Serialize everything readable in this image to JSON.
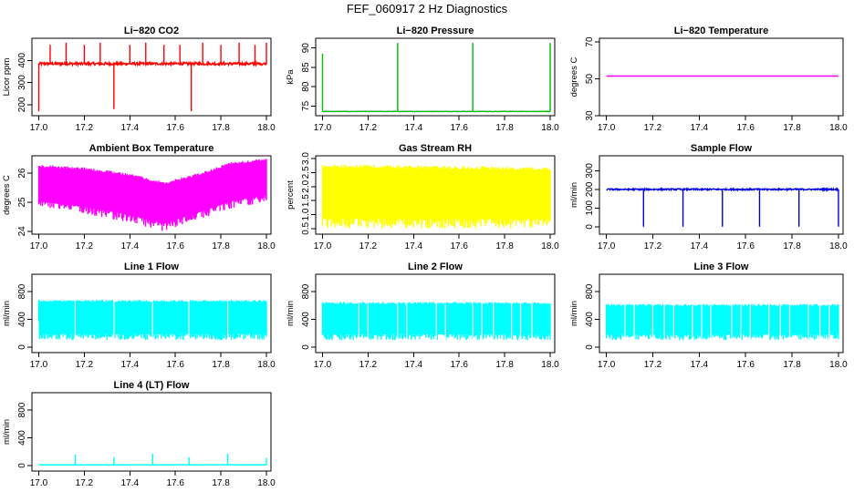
{
  "page": {
    "title": "FEF_060917  2 Hz Diagnostics"
  },
  "chart_data": [
    {
      "type": "line",
      "title": "Li−820 CO2",
      "xlabel": "",
      "ylabel": "Licor ppm",
      "xlim": [
        16.97,
        18.02
      ],
      "ylim": [
        150,
        500
      ],
      "xticks": [
        17.0,
        17.2,
        17.4,
        17.6,
        17.8,
        18.0
      ],
      "yticks": [
        200,
        300,
        400
      ],
      "color": "#ff0000",
      "base": 385,
      "noise": 6,
      "spikes": [
        [
          17.0,
          170
        ],
        [
          17.05,
          470
        ],
        [
          17.12,
          480
        ],
        [
          17.2,
          470
        ],
        [
          17.27,
          480
        ],
        [
          17.33,
          180
        ],
        [
          17.4,
          470
        ],
        [
          17.47,
          480
        ],
        [
          17.55,
          470
        ],
        [
          17.62,
          470
        ],
        [
          17.67,
          170
        ],
        [
          17.72,
          480
        ],
        [
          17.8,
          470
        ],
        [
          17.88,
          480
        ],
        [
          17.95,
          470
        ],
        [
          18.0,
          480
        ]
      ]
    },
    {
      "type": "line",
      "title": "Li−820 Pressure",
      "xlabel": "",
      "ylabel": "kPa",
      "xlim": [
        16.97,
        18.02
      ],
      "ylim": [
        72.5,
        92.5
      ],
      "xticks": [
        17.0,
        17.2,
        17.4,
        17.6,
        17.8,
        18.0
      ],
      "yticks": [
        75,
        80,
        85,
        90
      ],
      "color": "#00bb00",
      "base": 73.6,
      "noise": 0.05,
      "spikes": [
        [
          17.0,
          88.5
        ],
        [
          17.33,
          91.3
        ],
        [
          17.66,
          91.3
        ],
        [
          18.0,
          91.3
        ]
      ]
    },
    {
      "type": "line",
      "title": "Li−820 Temperature",
      "xlabel": "",
      "ylabel": "degrees C",
      "xlim": [
        16.97,
        18.02
      ],
      "ylim": [
        30,
        72
      ],
      "xticks": [
        17.0,
        17.2,
        17.4,
        17.6,
        17.8,
        18.0
      ],
      "yticks": [
        30,
        50,
        70
      ],
      "color": "#ff00ff",
      "base": 51.5,
      "noise": 0,
      "spikes": []
    },
    {
      "type": "area",
      "title": "Ambient Box Temperature",
      "xlabel": "",
      "ylabel": "degrees C",
      "xlim": [
        16.97,
        18.02
      ],
      "ylim": [
        23.9,
        26.6
      ],
      "xticks": [
        17.0,
        17.2,
        17.4,
        17.6,
        17.8,
        18.0
      ],
      "yticks": [
        24.0,
        25.0,
        26.0
      ],
      "color": "#ff00ff",
      "upper": [
        [
          17.0,
          26.3
        ],
        [
          17.2,
          26.2
        ],
        [
          17.4,
          26.0
        ],
        [
          17.55,
          25.7
        ],
        [
          17.7,
          26.0
        ],
        [
          17.85,
          26.4
        ],
        [
          18.0,
          26.5
        ]
      ],
      "lower": [
        [
          17.0,
          24.8
        ],
        [
          17.2,
          24.6
        ],
        [
          17.4,
          24.3
        ],
        [
          17.55,
          24.0
        ],
        [
          17.7,
          24.4
        ],
        [
          17.85,
          24.8
        ],
        [
          18.0,
          25.0
        ]
      ]
    },
    {
      "type": "area",
      "title": "Gas Stream RH",
      "xlabel": "",
      "ylabel": "percent",
      "xlim": [
        16.97,
        18.02
      ],
      "ylim": [
        0.3,
        3.1
      ],
      "xticks": [
        17.0,
        17.2,
        17.4,
        17.6,
        17.8,
        18.0
      ],
      "yticks": [
        0.5,
        1.0,
        1.5,
        2.0,
        2.5,
        3.0
      ],
      "color": "#ffff00",
      "upper": [
        [
          17.0,
          2.8
        ],
        [
          18.0,
          2.7
        ]
      ],
      "lower": [
        [
          17.0,
          0.5
        ],
        [
          18.0,
          0.5
        ]
      ]
    },
    {
      "type": "line",
      "title": "Sample Flow",
      "xlabel": "",
      "ylabel": "ml/min",
      "xlim": [
        16.97,
        18.02
      ],
      "ylim": [
        -40,
        380
      ],
      "xticks": [
        17.0,
        17.2,
        17.4,
        17.6,
        17.8,
        18.0
      ],
      "yticks": [
        0,
        100,
        200,
        300
      ],
      "color": "#0000dd",
      "base": 200,
      "noise": 4,
      "spikes": [
        [
          17.16,
          0
        ],
        [
          17.33,
          0
        ],
        [
          17.5,
          0
        ],
        [
          17.66,
          0
        ],
        [
          17.83,
          0
        ],
        [
          18.0,
          0
        ]
      ]
    },
    {
      "type": "area",
      "title": "Line 1 Flow",
      "xlabel": "",
      "ylabel": "ml/min",
      "xlim": [
        16.97,
        18.02
      ],
      "ylim": [
        -80,
        1050
      ],
      "xticks": [
        17.0,
        17.2,
        17.4,
        17.6,
        17.8,
        18.0
      ],
      "yticks": [
        0,
        400,
        800
      ],
      "color": "#00ffff",
      "upper": [
        [
          17.0,
          680
        ],
        [
          18.0,
          680
        ]
      ],
      "lower": [
        [
          17.0,
          100
        ],
        [
          18.0,
          100
        ]
      ],
      "gaps": [
        17.16,
        17.33,
        17.5,
        17.66,
        17.83
      ]
    },
    {
      "type": "area",
      "title": "Line 2 Flow",
      "xlabel": "",
      "ylabel": "ml/min",
      "xlim": [
        16.97,
        18.02
      ],
      "ylim": [
        -80,
        1050
      ],
      "xticks": [
        17.0,
        17.2,
        17.4,
        17.6,
        17.8,
        18.0
      ],
      "yticks": [
        0,
        400,
        800
      ],
      "color": "#00ffff",
      "upper": [
        [
          17.0,
          650
        ],
        [
          18.0,
          650
        ]
      ],
      "lower": [
        [
          17.0,
          100
        ],
        [
          18.0,
          100
        ]
      ],
      "gaps": [
        17.16,
        17.2,
        17.33,
        17.37,
        17.5,
        17.54,
        17.66,
        17.7,
        17.75,
        17.83,
        17.87,
        17.92
      ]
    },
    {
      "type": "area",
      "title": "Line 3 Flow",
      "xlabel": "",
      "ylabel": "ml/min",
      "xlim": [
        16.97,
        18.02
      ],
      "ylim": [
        -80,
        1050
      ],
      "xticks": [
        17.0,
        17.2,
        17.4,
        17.6,
        17.8,
        18.0
      ],
      "yticks": [
        0,
        400,
        800
      ],
      "color": "#00ffff",
      "upper": [
        [
          17.0,
          620
        ],
        [
          18.0,
          620
        ]
      ],
      "lower": [
        [
          17.0,
          100
        ],
        [
          18.0,
          100
        ]
      ],
      "gaps": [
        17.08,
        17.12,
        17.2,
        17.25,
        17.29,
        17.37,
        17.41,
        17.45,
        17.54,
        17.58,
        17.62,
        17.7,
        17.75,
        17.79,
        17.87,
        17.92,
        17.96
      ]
    },
    {
      "type": "line",
      "title": "Line 4 (LT) Flow",
      "xlabel": "",
      "ylabel": "ml/min",
      "xlim": [
        16.97,
        18.02
      ],
      "ylim": [
        -80,
        1050
      ],
      "xticks": [
        17.0,
        17.2,
        17.4,
        17.6,
        17.8,
        18.0
      ],
      "yticks": [
        0,
        400,
        800
      ],
      "color": "#00ffff",
      "base": 10,
      "noise": 2,
      "spikes": [
        [
          17.16,
          160
        ],
        [
          17.33,
          120
        ],
        [
          17.5,
          170
        ],
        [
          17.66,
          120
        ],
        [
          17.83,
          170
        ],
        [
          18.0,
          110
        ]
      ]
    }
  ]
}
